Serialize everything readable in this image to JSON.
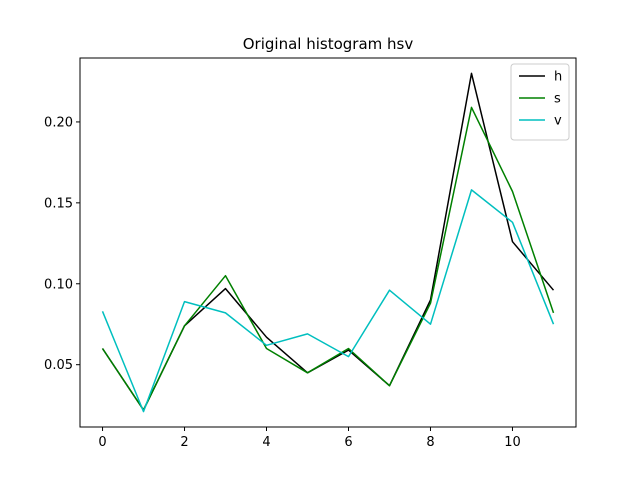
{
  "chart_data": {
    "type": "line",
    "title": "Original histogram hsv",
    "xlabel": "",
    "ylabel": "",
    "x": [
      0,
      1,
      2,
      3,
      4,
      5,
      6,
      7,
      8,
      9,
      10,
      11
    ],
    "xlim": [
      -0.55,
      11.55
    ],
    "ylim": [
      0.0115,
      0.2395
    ],
    "xticks": [
      0,
      2,
      4,
      6,
      8,
      10
    ],
    "xtick_labels": [
      "0",
      "2",
      "4",
      "6",
      "8",
      "10"
    ],
    "yticks": [
      0.05,
      0.1,
      0.15,
      0.2
    ],
    "ytick_labels": [
      "0.05",
      "0.10",
      "0.15",
      "0.20"
    ],
    "grid": false,
    "legend_position": "top-right",
    "series": [
      {
        "name": "h",
        "color": "#000000",
        "values": [
          0.06,
          0.022,
          0.074,
          0.097,
          0.067,
          0.045,
          0.059,
          0.037,
          0.09,
          0.23,
          0.126,
          0.096
        ]
      },
      {
        "name": "s",
        "color": "#008000",
        "values": [
          0.06,
          0.022,
          0.074,
          0.105,
          0.06,
          0.045,
          0.06,
          0.037,
          0.088,
          0.209,
          0.157,
          0.082
        ]
      },
      {
        "name": "v",
        "color": "#00bfbf",
        "values": [
          0.083,
          0.021,
          0.089,
          0.082,
          0.062,
          0.069,
          0.055,
          0.096,
          0.075,
          0.158,
          0.138,
          0.075
        ]
      }
    ]
  }
}
